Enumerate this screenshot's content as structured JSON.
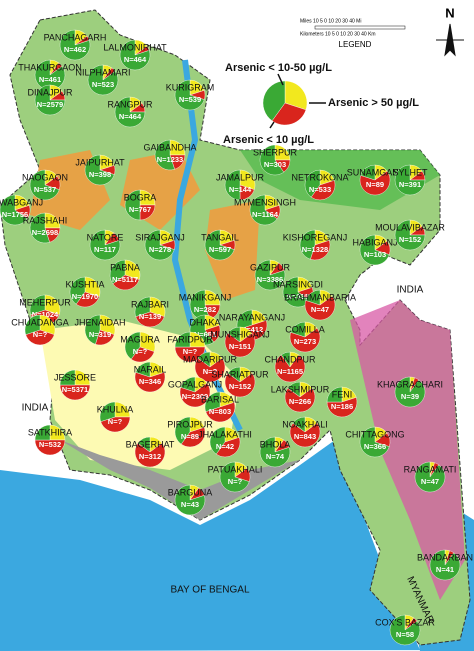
{
  "map": {
    "legend_title": "LEGEND",
    "north": "N",
    "scale_miles": "Miles 10 5 0 10 20 30 40 Mi",
    "scale_km": "Kilometers 10 5 0 10 20 30 40 Km",
    "legend": [
      {
        "label": "Arsenic < 10-50 µg/L",
        "color": "#f2e81e"
      },
      {
        "label": "Arsenic > 50 µg/L",
        "color": "#d9251d"
      },
      {
        "label": "Arsenic < 10 µg/L",
        "color": "#3aa935"
      }
    ],
    "places": [
      "INDIA",
      "INDIA",
      "BAY OF BENGAL",
      "MYANMAR"
    ],
    "districts": [
      {
        "name": "PANCHAGARH",
        "label": "N=462",
        "shares": [
          80,
          15,
          5
        ]
      },
      {
        "name": "THAKURGAON",
        "label": "N=461",
        "shares": [
          85,
          10,
          5
        ]
      },
      {
        "name": "LALMONIRHAT",
        "label": "N=464",
        "shares": [
          80,
          15,
          5
        ]
      },
      {
        "name": "NILPHAMARI",
        "label": "N=523",
        "shares": [
          85,
          10,
          5
        ]
      },
      {
        "name": "DINAJPUR",
        "label": "N=2579",
        "shares": [
          75,
          15,
          10
        ]
      },
      {
        "name": "KURIGRAM",
        "label": "N=539",
        "shares": [
          70,
          20,
          10
        ]
      },
      {
        "name": "RANGPUR",
        "label": "N=464",
        "shares": [
          75,
          15,
          10
        ]
      },
      {
        "name": "GAIBANDHA",
        "label": "N=1233",
        "shares": [
          55,
          25,
          20
        ]
      },
      {
        "name": "JAIPURHAT",
        "label": "N=398",
        "shares": [
          70,
          20,
          10
        ]
      },
      {
        "name": "NAOGAON",
        "label": "N=537",
        "shares": [
          70,
          15,
          15
        ]
      },
      {
        "name": "BOGRA",
        "label": "N=767",
        "shares": [
          50,
          25,
          25
        ]
      },
      {
        "name": "SHERPUR",
        "label": "N=303",
        "shares": [
          60,
          25,
          15
        ]
      },
      {
        "name": "NETROKONA",
        "label": "N=533",
        "shares": [
          40,
          20,
          40
        ]
      },
      {
        "name": "SUNAMGANJ",
        "label": "N=89",
        "shares": [
          20,
          15,
          65
        ]
      },
      {
        "name": "SYLHET",
        "label": "N=391",
        "shares": [
          75,
          15,
          10
        ]
      },
      {
        "name": "JAMALPUR",
        "label": "N=144",
        "shares": [
          50,
          30,
          20
        ]
      },
      {
        "name": "MYMENSINGH",
        "label": "N=1164",
        "shares": [
          65,
          20,
          15
        ]
      },
      {
        "name": "NAWABGANJ",
        "label": "N=1756",
        "shares": [
          65,
          20,
          15
        ]
      },
      {
        "name": "RAJSHAHI",
        "label": "N=2698",
        "shares": [
          55,
          25,
          20
        ]
      },
      {
        "name": "NATORE",
        "label": "N=117",
        "shares": [
          80,
          10,
          10
        ]
      },
      {
        "name": "SIRAJGANJ",
        "label": "N=278",
        "shares": [
          70,
          20,
          10
        ]
      },
      {
        "name": "TANGAIL",
        "label": "N=597",
        "shares": [
          70,
          20,
          10
        ]
      },
      {
        "name": "KISHOREGANJ",
        "label": "N=1328",
        "shares": [
          45,
          20,
          35
        ]
      },
      {
        "name": "HABIGANJ",
        "label": "N=103",
        "shares": [
          70,
          15,
          15
        ]
      },
      {
        "name": "MOULAVIBAZAR",
        "label": "N=152",
        "shares": [
          75,
          15,
          10
        ]
      },
      {
        "name": "PABNA",
        "label": "N=5117",
        "shares": [
          35,
          30,
          35
        ]
      },
      {
        "name": "KUSHTIA",
        "label": "N=1970",
        "shares": [
          40,
          30,
          30
        ]
      },
      {
        "name": "GAZIPUR",
        "label": "N=3386",
        "shares": [
          80,
          10,
          10
        ]
      },
      {
        "name": "NARSINGDI",
        "label": "N=335",
        "shares": [
          65,
          20,
          15
        ]
      },
      {
        "name": "BRAHMANBARIA",
        "label": "N=47",
        "shares": [
          20,
          15,
          65
        ]
      },
      {
        "name": "MEHERPUR",
        "label": "N=1024",
        "shares": [
          30,
          30,
          40
        ]
      },
      {
        "name": "MANIKGANJ",
        "label": "N=282",
        "shares": [
          55,
          25,
          20
        ]
      },
      {
        "name": "RAJBARI",
        "label": "N=139",
        "shares": [
          30,
          30,
          40
        ]
      },
      {
        "name": "JHENAIDAH",
        "label": "N=319",
        "shares": [
          45,
          30,
          25
        ]
      },
      {
        "name": "NARAYANGANJ",
        "label": "N=412",
        "shares": [
          30,
          20,
          50
        ]
      },
      {
        "name": "DHAKA",
        "label": "N=651",
        "shares": [
          60,
          20,
          20
        ]
      },
      {
        "name": "CHUADANGA",
        "label": "N=?",
        "shares": [
          30,
          30,
          40
        ]
      },
      {
        "name": "MAGURA",
        "label": "N=?",
        "shares": [
          40,
          30,
          30
        ]
      },
      {
        "name": "FARIDPUR",
        "label": "N=?",
        "shares": [
          25,
          25,
          50
        ]
      },
      {
        "name": "MUNSHIGANJ",
        "label": "N=151",
        "shares": [
          15,
          15,
          70
        ]
      },
      {
        "name": "COMILLA",
        "label": "N=273",
        "shares": [
          20,
          15,
          65
        ]
      },
      {
        "name": "MADARIPUR",
        "label": "N=?",
        "shares": [
          15,
          15,
          70
        ]
      },
      {
        "name": "CHANDPUR",
        "label": "N=1165",
        "shares": [
          10,
          10,
          80
        ]
      },
      {
        "name": "JESSORE",
        "label": "N=5371",
        "shares": [
          25,
          25,
          50
        ]
      },
      {
        "name": "NARAIL",
        "label": "N=346",
        "shares": [
          20,
          20,
          60
        ]
      },
      {
        "name": "GOPALGANJ",
        "label": "N=2309",
        "shares": [
          20,
          15,
          65
        ]
      },
      {
        "name": "SHARIATPUR",
        "label": "N=152",
        "shares": [
          15,
          15,
          70
        ]
      },
      {
        "name": "LAKSHMIPUR",
        "label": "N=266",
        "shares": [
          15,
          15,
          70
        ]
      },
      {
        "name": "FENI",
        "label": "N=186",
        "shares": [
          25,
          20,
          55
        ]
      },
      {
        "name": "BARISAL",
        "label": "N=803",
        "shares": [
          30,
          20,
          50
        ]
      },
      {
        "name": "KHULNA",
        "label": "N=?",
        "shares": [
          30,
          25,
          45
        ]
      },
      {
        "name": "NOAKHALI",
        "label": "N=843",
        "shares": [
          15,
          15,
          70
        ]
      },
      {
        "name": "KHAGRACHARI",
        "label": "N=39",
        "shares": [
          90,
          5,
          5
        ]
      },
      {
        "name": "PIROJPUR",
        "label": "N=89",
        "shares": [
          40,
          20,
          40
        ]
      },
      {
        "name": "SATKHIRA",
        "label": "N=532",
        "shares": [
          25,
          25,
          50
        ]
      },
      {
        "name": "BAGERHAT",
        "label": "N=312",
        "shares": [
          15,
          15,
          70
        ]
      },
      {
        "name": "JHALAKATHI",
        "label": "N=42",
        "shares": [
          40,
          20,
          40
        ]
      },
      {
        "name": "BHOLA",
        "label": "N=74",
        "shares": [
          80,
          10,
          10
        ]
      },
      {
        "name": "CHITTAGONG",
        "label": "N=366",
        "shares": [
          70,
          15,
          15
        ]
      },
      {
        "name": "RANGAMATI",
        "label": "N=47",
        "shares": [
          90,
          5,
          5
        ]
      },
      {
        "name": "PATUAKHALI",
        "label": "N=?",
        "shares": [
          70,
          15,
          15
        ]
      },
      {
        "name": "BARGUNA",
        "label": "N=43",
        "shares": [
          80,
          10,
          10
        ]
      },
      {
        "name": "BANDARBAN",
        "label": "N=41",
        "shares": [
          90,
          5,
          5
        ]
      },
      {
        "name": "COX'S BAZAR",
        "label": "N=58",
        "shares": [
          85,
          10,
          5
        ]
      }
    ]
  }
}
